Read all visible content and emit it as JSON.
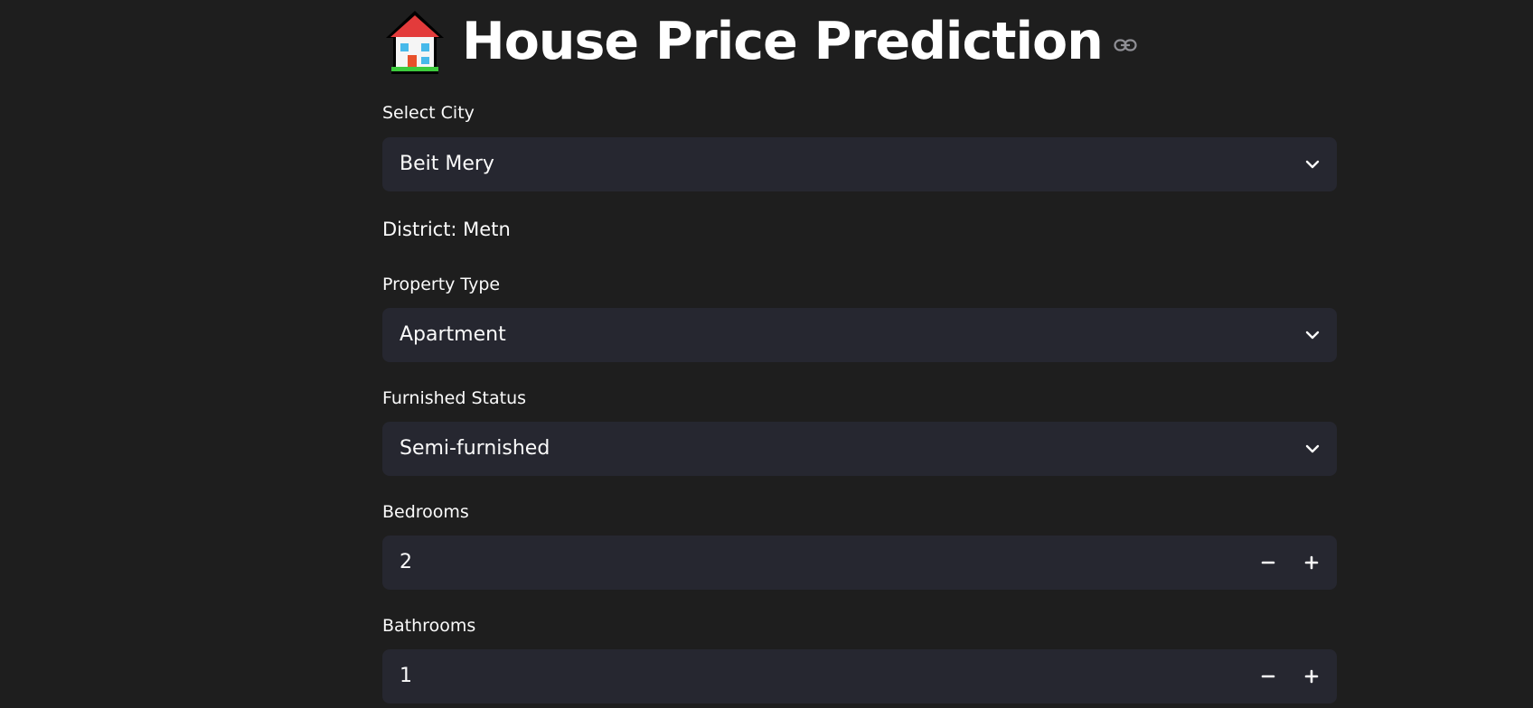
{
  "header": {
    "title": "House Price Prediction",
    "title_icon": "house-emoji-icon",
    "anchor_icon": "link-icon"
  },
  "form": {
    "city": {
      "label": "Select City",
      "value": "Beit Mery",
      "icon": "chevron-down-icon"
    },
    "district": {
      "text": "District: Metn"
    },
    "property_type": {
      "label": "Property Type",
      "value": "Apartment",
      "icon": "chevron-down-icon"
    },
    "furnished_status": {
      "label": "Furnished Status",
      "value": "Semi-furnished",
      "icon": "chevron-down-icon"
    },
    "bedrooms": {
      "label": "Bedrooms",
      "value": "2",
      "decrement_icon": "minus-icon",
      "increment_icon": "plus-icon"
    },
    "bathrooms": {
      "label": "Bathrooms",
      "value": "1",
      "decrement_icon": "minus-icon",
      "increment_icon": "plus-icon"
    }
  },
  "colors": {
    "page_background": "#1e1e1e",
    "input_background": "#262730",
    "text": "#fafafa"
  }
}
